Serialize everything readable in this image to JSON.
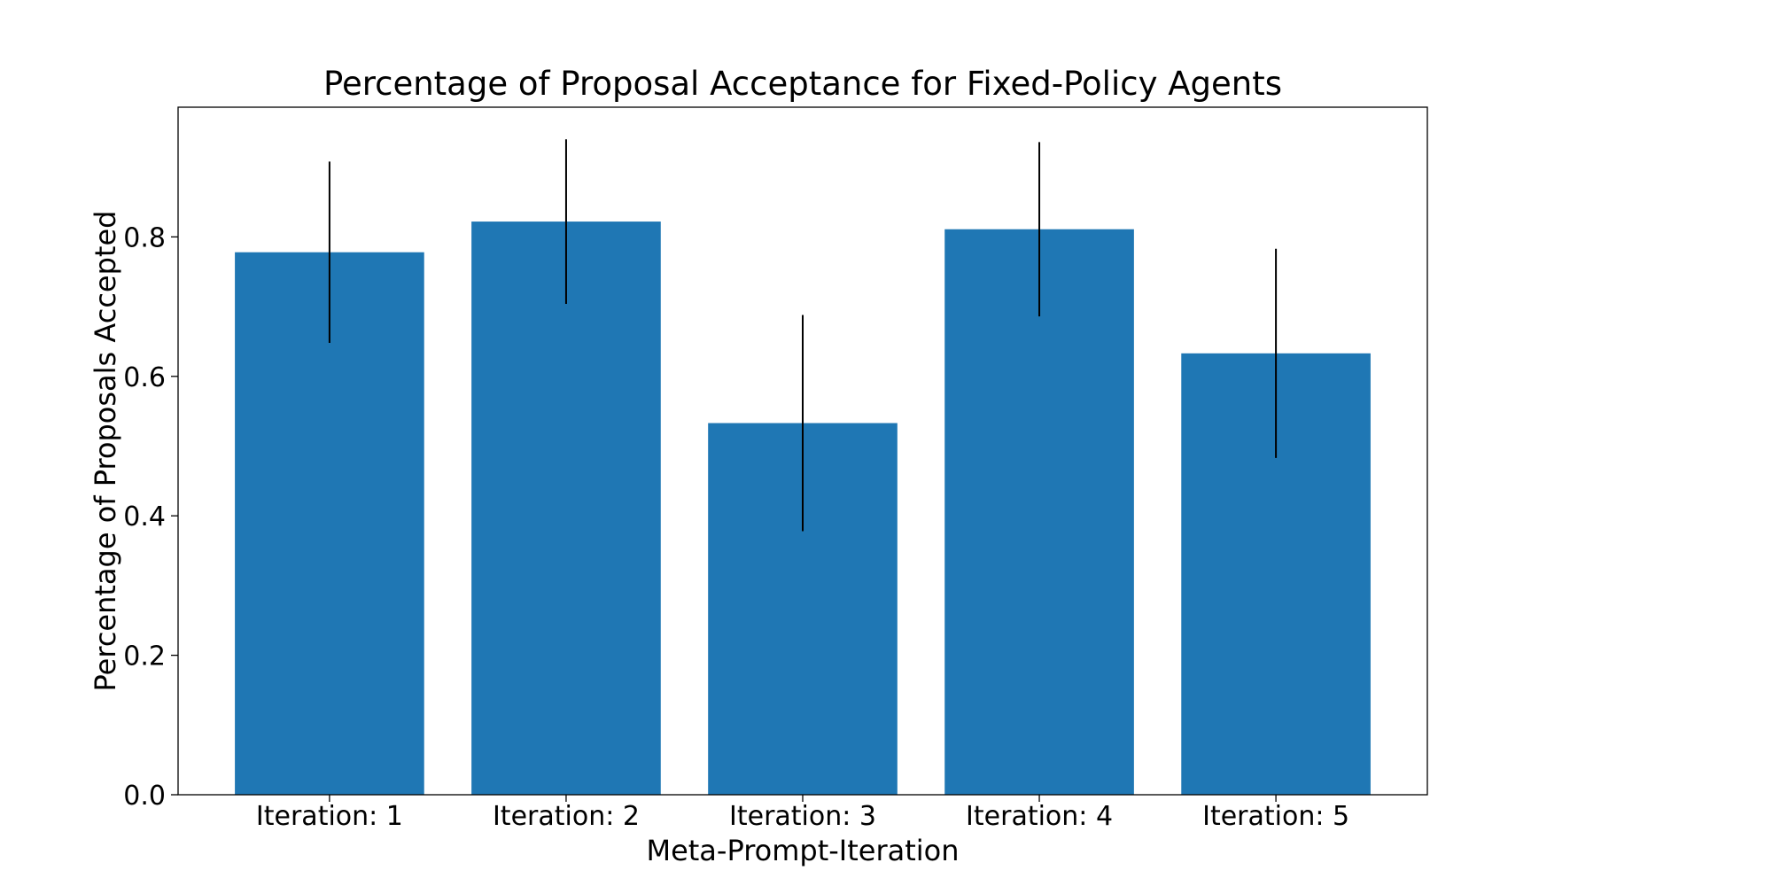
{
  "chart_data": {
    "type": "bar",
    "title": "Percentage of Proposal Acceptance for Fixed-Policy Agents",
    "xlabel": "Meta-Prompt-Iteration",
    "ylabel": "Percentage of Proposals Accepted",
    "categories": [
      "Iteration: 1",
      "Iteration: 2",
      "Iteration: 3",
      "Iteration: 4",
      "Iteration: 5"
    ],
    "values": [
      0.778,
      0.822,
      0.533,
      0.811,
      0.633
    ],
    "error": [
      0.13,
      0.118,
      0.155,
      0.125,
      0.15
    ],
    "ylim": [
      0,
      0.986
    ],
    "yticks": [
      0.0,
      0.2,
      0.4,
      0.6,
      0.8
    ],
    "ytick_labels": [
      "0.0",
      "0.2",
      "0.4",
      "0.6",
      "0.8"
    ],
    "bar_color": "#1f77b4",
    "errorbar_color": "#000000",
    "grid": false,
    "legend": false
  }
}
